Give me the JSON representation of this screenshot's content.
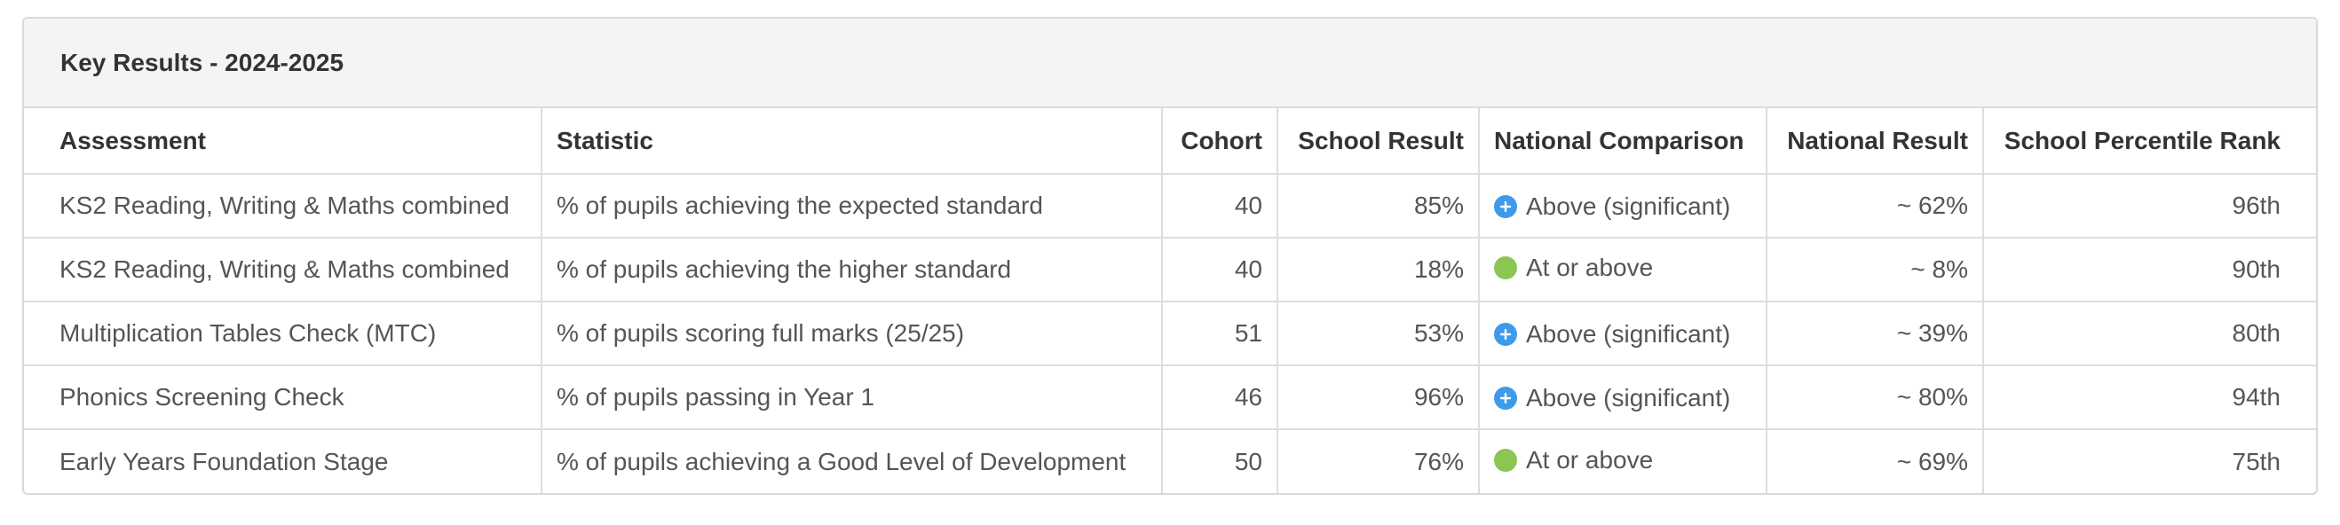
{
  "panel": {
    "title": "Key Results - 2024-2025"
  },
  "table": {
    "headers": {
      "assessment": "Assessment",
      "statistic": "Statistic",
      "cohort": "Cohort",
      "school_result": "School Result",
      "national_comparison": "National Comparison",
      "national_result": "National Result",
      "school_percentile_rank": "School Percentile Rank"
    },
    "rows": [
      {
        "assessment": "KS2 Reading, Writing & Maths combined",
        "statistic": "% of pupils achieving the expected standard",
        "cohort": "40",
        "school_result": "85%",
        "comparison_icon": "plus-circle-icon",
        "comparison_color": "#3d9be9",
        "national_comparison": "Above (significant)",
        "national_result": "~ 62%",
        "school_percentile_rank": "96th"
      },
      {
        "assessment": "KS2 Reading, Writing & Maths combined",
        "statistic": "% of pupils achieving the higher standard",
        "cohort": "40",
        "school_result": "18%",
        "comparison_icon": "green-dot-icon",
        "comparison_color": "#8cc652",
        "national_comparison": "At or above",
        "national_result": "~ 8%",
        "school_percentile_rank": "90th"
      },
      {
        "assessment": "Multiplication Tables Check (MTC)",
        "statistic": "% of pupils scoring full marks (25/25)",
        "cohort": "51",
        "school_result": "53%",
        "comparison_icon": "plus-circle-icon",
        "comparison_color": "#3d9be9",
        "national_comparison": "Above (significant)",
        "national_result": "~ 39%",
        "school_percentile_rank": "80th"
      },
      {
        "assessment": "Phonics Screening Check",
        "statistic": "% of pupils passing in Year 1",
        "cohort": "46",
        "school_result": "96%",
        "comparison_icon": "plus-circle-icon",
        "comparison_color": "#3d9be9",
        "national_comparison": "Above (significant)",
        "national_result": "~ 80%",
        "school_percentile_rank": "94th"
      },
      {
        "assessment": "Early Years Foundation Stage",
        "statistic": "% of pupils achieving a Good Level of Development",
        "cohort": "50",
        "school_result": "76%",
        "comparison_icon": "green-dot-icon",
        "comparison_color": "#8cc652",
        "national_comparison": "At or above",
        "national_result": "~ 69%",
        "school_percentile_rank": "75th"
      }
    ]
  }
}
